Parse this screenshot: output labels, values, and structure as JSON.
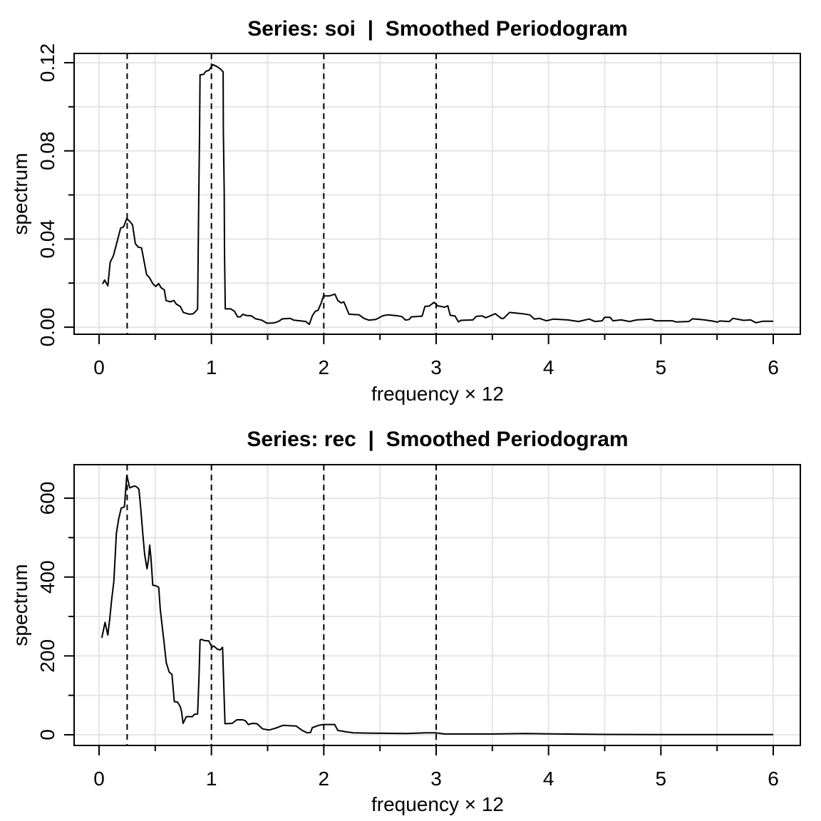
{
  "chart_data": [
    {
      "type": "line",
      "title": "Series: soi  |  Smoothed Periodogram",
      "xlabel": "frequency × 12",
      "ylabel": "spectrum",
      "xlim": [
        -0.222,
        6.241
      ],
      "ylim": [
        -0.0032,
        0.1242
      ],
      "xticks": [
        0,
        1,
        2,
        3,
        4,
        5,
        6
      ],
      "xtick_labels": [
        "0",
        "1",
        "2",
        "3",
        "4",
        "5",
        "6"
      ],
      "xminor": [
        0.5,
        1.5,
        2.5,
        3.5,
        4.5,
        5.5
      ],
      "yticks": [
        0,
        0.04,
        0.08,
        0.12
      ],
      "ytick_labels": [
        "0.00",
        "0.04",
        "0.08",
        "0.12"
      ],
      "yminor": [
        0.02,
        0.06,
        0.1
      ],
      "grid": true,
      "vlines": [
        0.25,
        1,
        2,
        3
      ],
      "x": [
        0.032,
        0.049,
        0.078,
        0.099,
        0.127,
        0.159,
        0.192,
        0.218,
        0.247,
        0.275,
        0.298,
        0.323,
        0.349,
        0.378,
        0.423,
        0.45,
        0.48,
        0.505,
        0.531,
        0.552,
        0.581,
        0.596,
        0.634,
        0.666,
        0.687,
        0.723,
        0.75,
        0.803,
        0.835,
        0.861,
        0.877,
        0.882,
        0.888,
        0.894,
        0.899,
        0.93,
        0.951,
        0.979,
        1.0,
        1.015,
        1.047,
        1.078,
        1.104,
        1.106,
        1.114,
        1.116,
        1.123,
        1.173,
        1.205,
        1.233,
        1.258,
        1.279,
        1.311,
        1.353,
        1.395,
        1.448,
        1.495,
        1.554,
        1.596,
        1.632,
        1.702,
        1.733,
        1.786,
        1.839,
        1.871,
        1.898,
        1.924,
        1.949,
        1.977,
        1.998,
        2.051,
        2.099,
        2.125,
        2.156,
        2.178,
        2.224,
        2.315,
        2.357,
        2.4,
        2.463,
        2.526,
        2.569,
        2.653,
        2.696,
        2.727,
        2.759,
        2.78,
        2.875,
        2.9,
        2.939,
        2.981,
        3.013,
        3.076,
        3.104,
        3.125,
        3.167,
        3.199,
        3.22,
        3.326,
        3.357,
        3.41,
        3.442,
        3.526,
        3.579,
        3.6,
        3.653,
        3.77,
        3.833,
        3.875,
        3.918,
        3.981,
        4.044,
        4.171,
        4.266,
        4.362,
        4.414,
        4.478,
        4.499,
        4.548,
        4.573,
        4.647,
        4.721,
        4.784,
        4.911,
        4.953,
        5.101,
        5.133,
        5.249,
        5.281,
        5.376,
        5.471,
        5.503,
        5.524,
        5.609,
        5.641,
        5.736,
        5.799,
        5.846,
        5.905,
        6.0
      ],
      "y": [
        0.0196,
        0.0214,
        0.0188,
        0.0295,
        0.0323,
        0.0385,
        0.045,
        0.0455,
        0.0493,
        0.0479,
        0.0464,
        0.0379,
        0.0363,
        0.036,
        0.0239,
        0.0223,
        0.0196,
        0.0185,
        0.0198,
        0.0179,
        0.0169,
        0.0121,
        0.0115,
        0.0121,
        0.0105,
        0.0094,
        0.0067,
        0.0059,
        0.006,
        0.0072,
        0.0083,
        0.0347,
        0.0617,
        0.0875,
        0.1145,
        0.1147,
        0.1161,
        0.1166,
        0.1183,
        0.1191,
        0.1183,
        0.1172,
        0.1159,
        0.0892,
        0.0617,
        0.0347,
        0.0083,
        0.0083,
        0.0072,
        0.0047,
        0.0047,
        0.0059,
        0.0053,
        0.0052,
        0.0038,
        0.0032,
        0.0018,
        0.0019,
        0.0026,
        0.0038,
        0.004,
        0.0032,
        0.0029,
        0.0026,
        0.0013,
        0.0052,
        0.0072,
        0.0077,
        0.011,
        0.0142,
        0.0142,
        0.015,
        0.0121,
        0.011,
        0.0115,
        0.0059,
        0.0056,
        0.004,
        0.0032,
        0.0035,
        0.0052,
        0.0056,
        0.0052,
        0.0048,
        0.0032,
        0.0035,
        0.0047,
        0.005,
        0.0094,
        0.0096,
        0.0113,
        0.0097,
        0.0091,
        0.0097,
        0.0054,
        0.0051,
        0.0024,
        0.0031,
        0.0033,
        0.0049,
        0.0051,
        0.0043,
        0.0061,
        0.004,
        0.004,
        0.0067,
        0.0061,
        0.0056,
        0.0037,
        0.004,
        0.0029,
        0.0037,
        0.0033,
        0.0026,
        0.0037,
        0.0026,
        0.0029,
        0.0045,
        0.0045,
        0.0029,
        0.0033,
        0.0026,
        0.0033,
        0.0037,
        0.0029,
        0.0029,
        0.0024,
        0.0026,
        0.0038,
        0.0034,
        0.0027,
        0.0023,
        0.0028,
        0.0026,
        0.004,
        0.0031,
        0.0033,
        0.002,
        0.0027,
        0.0027
      ]
    },
    {
      "type": "line",
      "title": "Series: rec  |  Smoothed Periodogram",
      "xlabel": "frequency × 12",
      "ylabel": "spectrum",
      "xlim": [
        -0.222,
        6.241
      ],
      "ylim": [
        -27.1,
        685
      ],
      "xticks": [
        0,
        1,
        2,
        3,
        4,
        5,
        6
      ],
      "xtick_labels": [
        "0",
        "1",
        "2",
        "3",
        "4",
        "5",
        "6"
      ],
      "xminor": [
        0.5,
        1.5,
        2.5,
        3.5,
        4.5,
        5.5
      ],
      "yticks": [
        0,
        200,
        400,
        600
      ],
      "ytick_labels": [
        "0",
        "200",
        "400",
        "600"
      ],
      "yminor": [
        100,
        300,
        500
      ],
      "grid": true,
      "vlines": [
        0.25,
        1,
        2,
        3
      ],
      "x": [
        0.025,
        0.053,
        0.078,
        0.095,
        0.112,
        0.131,
        0.142,
        0.154,
        0.175,
        0.197,
        0.226,
        0.247,
        0.273,
        0.296,
        0.317,
        0.338,
        0.355,
        0.37,
        0.391,
        0.406,
        0.427,
        0.44,
        0.45,
        0.461,
        0.478,
        0.505,
        0.531,
        0.545,
        0.564,
        0.581,
        0.598,
        0.624,
        0.649,
        0.67,
        0.698,
        0.723,
        0.734,
        0.748,
        0.776,
        0.829,
        0.85,
        0.877,
        0.89,
        0.899,
        0.909,
        0.937,
        0.977,
        1.004,
        1.021,
        1.053,
        1.078,
        1.099,
        1.11,
        1.121,
        1.184,
        1.226,
        1.279,
        1.304,
        1.328,
        1.364,
        1.406,
        1.455,
        1.512,
        1.575,
        1.638,
        1.691,
        1.755,
        1.808,
        1.85,
        1.882,
        1.898,
        1.956,
        1.998,
        2.097,
        2.125,
        2.188,
        2.262,
        2.421,
        2.738,
        2.907,
        2.992,
        3.076,
        3.5,
        3.8,
        4.1,
        4.5,
        5.0,
        6.0
      ],
      "y": [
        246,
        285,
        253,
        294,
        343,
        388,
        445,
        511,
        548,
        575,
        578,
        658,
        626,
        629,
        631,
        628,
        622,
        578,
        505,
        457,
        421,
        445,
        481,
        451,
        379,
        378,
        374,
        318,
        270,
        228,
        183,
        159,
        153,
        84,
        83,
        71,
        59,
        29,
        46,
        46,
        52,
        53,
        150,
        240,
        242,
        239,
        238,
        222,
        225,
        217,
        215,
        222,
        125,
        28,
        29,
        38,
        38,
        35,
        26,
        29,
        28,
        15,
        12,
        17,
        24,
        23,
        22,
        11,
        5,
        6,
        18,
        24,
        26,
        26,
        11,
        8,
        5,
        4,
        3,
        5,
        5,
        2,
        2,
        3,
        2,
        1,
        0.5,
        0.5
      ]
    }
  ]
}
